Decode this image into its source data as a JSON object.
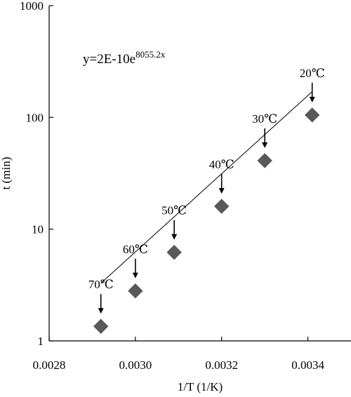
{
  "chart_data": {
    "type": "scatter",
    "title": "",
    "xlabel": "1/T (1/K)",
    "ylabel": "t (min)",
    "xlim": [
      0.0028,
      0.0035
    ],
    "ylim": [
      1,
      1000
    ],
    "yscale": "log",
    "x_ticks": [
      "0.0028",
      "0.0030",
      "0.0032",
      "0.0034"
    ],
    "y_ticks": [
      "1",
      "10",
      "100",
      "1000"
    ],
    "grid": false,
    "points": [
      {
        "x": 0.00292,
        "y": 1.35,
        "label": "70℃"
      },
      {
        "x": 0.003,
        "y": 2.8,
        "label": "60℃"
      },
      {
        "x": 0.00309,
        "y": 6.2,
        "label": "50℃"
      },
      {
        "x": 0.0032,
        "y": 16.0,
        "label": "40℃"
      },
      {
        "x": 0.0033,
        "y": 41.0,
        "label": "30℃"
      },
      {
        "x": 0.00341,
        "y": 105.0,
        "label": "20℃"
      }
    ],
    "fit": {
      "equation": "y=2E-10e",
      "exponent": "8055.2x",
      "a": 2e-10,
      "b": 8055.2
    },
    "marker": "diamond",
    "marker_color": "#595959",
    "line_color": "#000000"
  }
}
